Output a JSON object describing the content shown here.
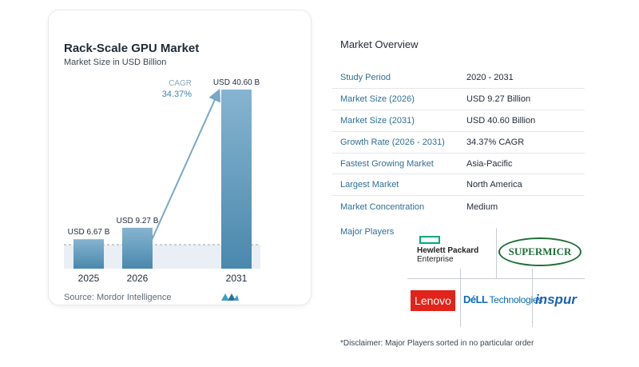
{
  "chart_data": {
    "type": "bar",
    "title": "Rack-Scale GPU Market",
    "subtitle": "Market Size in USD Billion",
    "categories": [
      "2025",
      "2026",
      "2031"
    ],
    "values": [
      6.67,
      9.27,
      40.6
    ],
    "data_labels": [
      "USD 6.67 B",
      "USD 9.27 B",
      "USD 40.60 B"
    ],
    "ylim": [
      0,
      45
    ],
    "cagr_label": "CAGR",
    "cagr_value": "34.37%",
    "colors": {
      "bar_top": "#86b4d0",
      "bar_bottom": "#4a88ad",
      "arrow": "#7aa8c6",
      "baseline_band": "#e6edf4"
    }
  },
  "source": "Source:  Mordor Intelligence",
  "overview": {
    "title": "Market Overview",
    "rows": [
      {
        "label": "Study Period",
        "value": "2020 - 2031"
      },
      {
        "label": "Market Size (2026)",
        "value": "USD 9.27 Billion"
      },
      {
        "label": "Market Size (2031)",
        "value": "USD 40.60 Billion"
      },
      {
        "label": "Growth Rate (2026 - 2031)",
        "value": "34.37% CAGR"
      },
      {
        "label": "Fastest Growing Market",
        "value": "Asia-Pacific"
      },
      {
        "label": "Largest Market",
        "value": "North America"
      },
      {
        "label": "Market Concentration",
        "value": "Medium"
      }
    ],
    "players_label": "Major Players",
    "players": {
      "hpe_line1": "Hewlett Packard",
      "hpe_line2": "Enterprise",
      "supermicro": "SUPERMICR",
      "lenovo": "Lenovo",
      "dell": "DéLL",
      "dell_tech": "Technologies",
      "inspur": "inspur"
    },
    "disclaimer": "*Disclaimer: Major Players sorted in no particular order"
  }
}
